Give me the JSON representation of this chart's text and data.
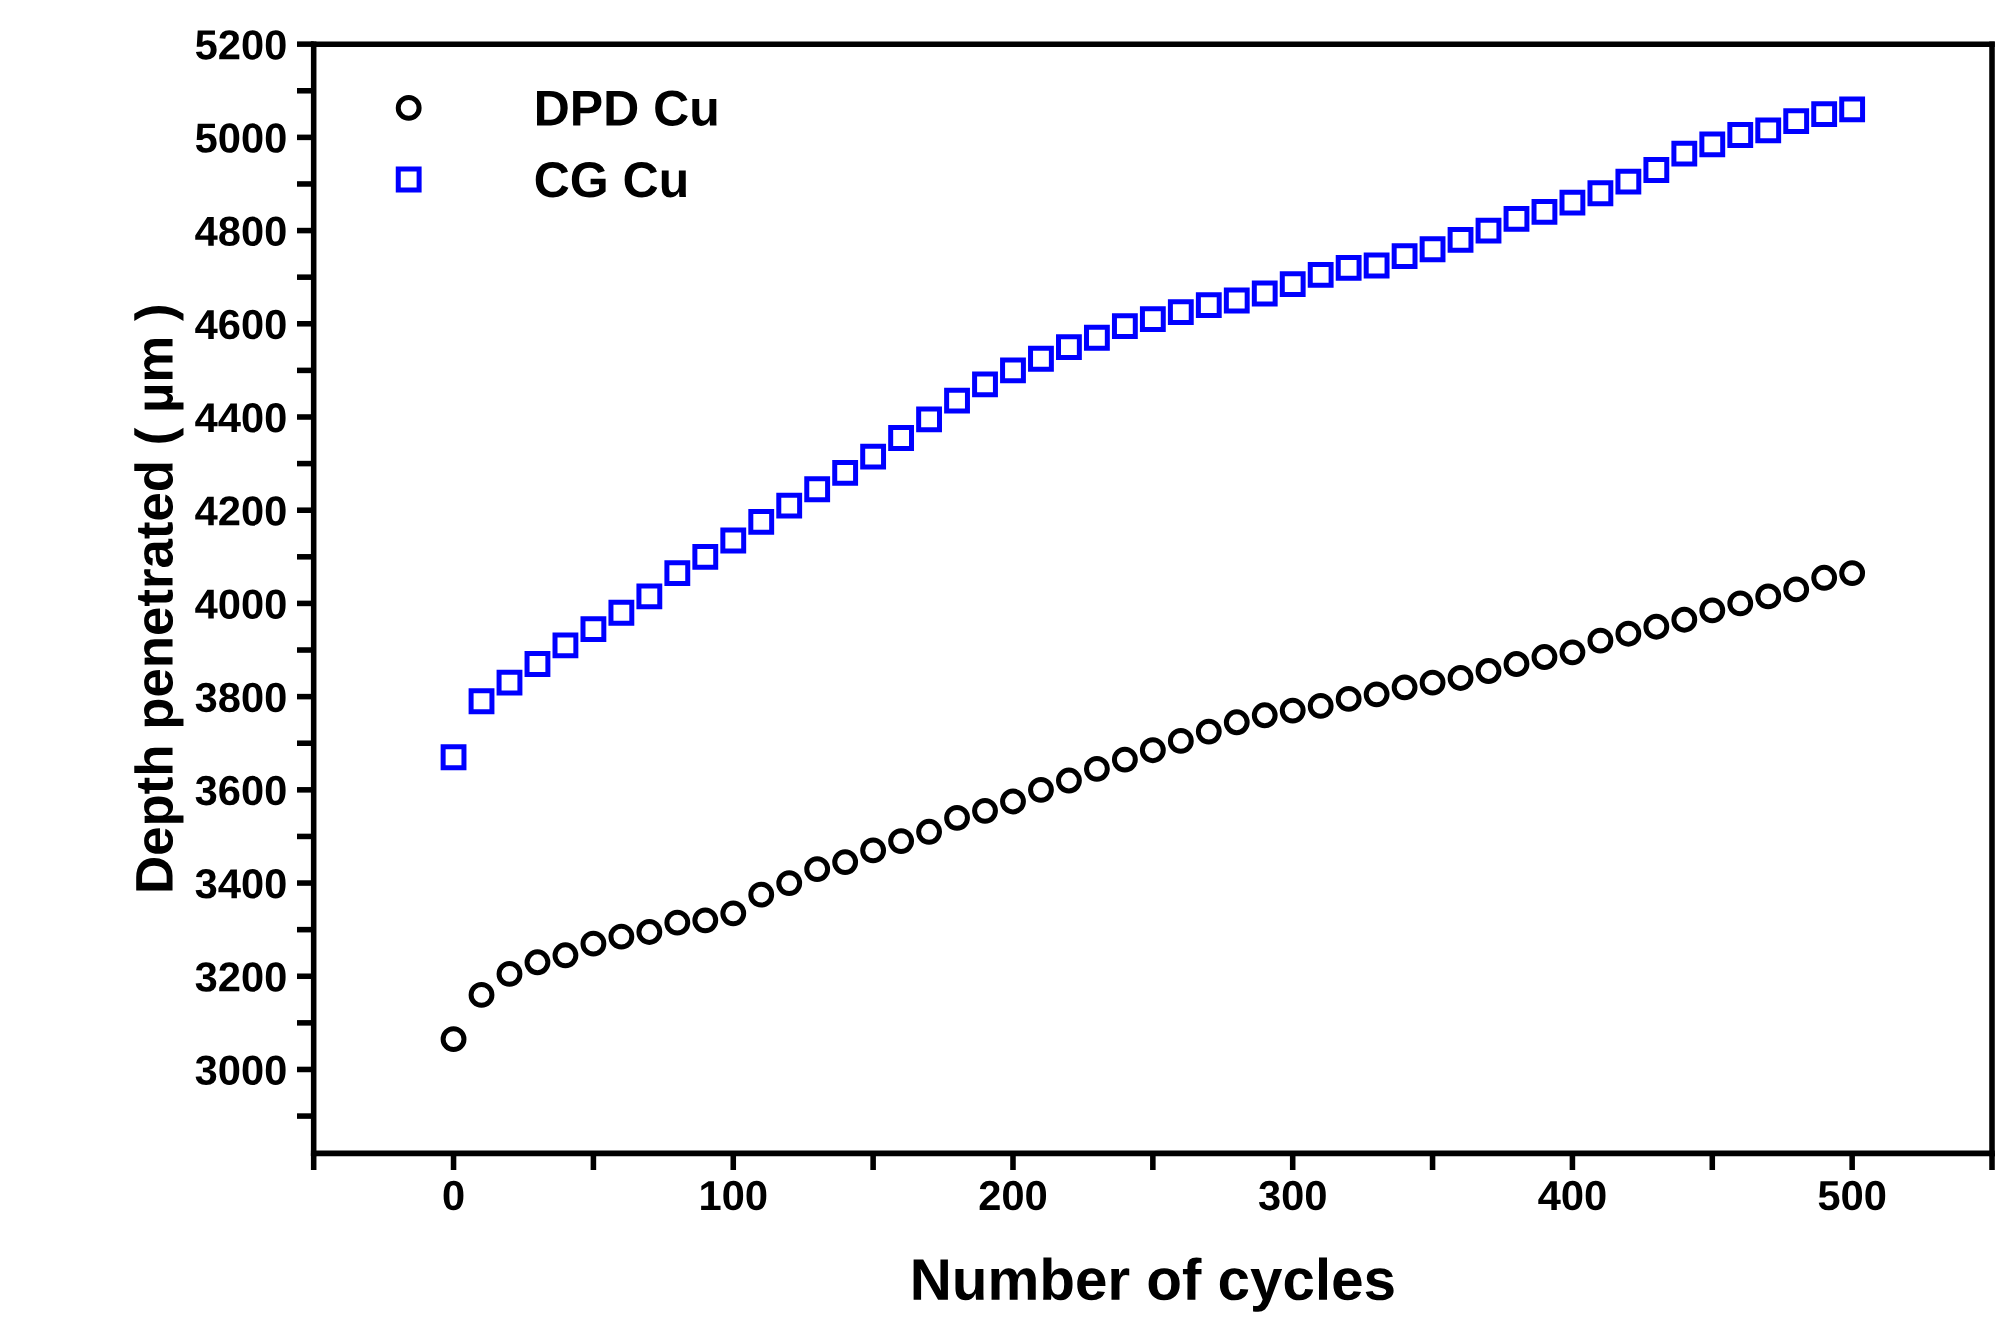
{
  "chart_data": {
    "type": "scatter",
    "xlabel": "Number of cycles",
    "ylabel": "Depth penetrated ( µm )",
    "xlim": [
      -50,
      550
    ],
    "ylim": [
      2820,
      5200
    ],
    "xticks": [
      {
        "value": -50,
        "label": null
      },
      0,
      {
        "value": 50,
        "label": null
      },
      100,
      {
        "value": 150,
        "label": null
      },
      200,
      {
        "value": 250,
        "label": null
      },
      300,
      {
        "value": 350,
        "label": null
      },
      400,
      {
        "value": 450,
        "label": null
      },
      500,
      {
        "value": 550,
        "label": null
      }
    ],
    "yticks": [
      {
        "value": 2900,
        "label": null
      },
      3000,
      {
        "value": 3100,
        "label": null
      },
      3200,
      {
        "value": 3300,
        "label": null
      },
      3400,
      {
        "value": 3500,
        "label": null
      },
      3600,
      {
        "value": 3700,
        "label": null
      },
      3800,
      {
        "value": 3900,
        "label": null
      },
      4000,
      {
        "value": 4100,
        "label": null
      },
      4200,
      {
        "value": 4300,
        "label": null
      },
      4400,
      {
        "value": 4500,
        "label": null
      },
      4600,
      {
        "value": 4700,
        "label": null
      },
      4800,
      {
        "value": 4900,
        "label": null
      },
      5000,
      {
        "value": 5100,
        "label": null
      },
      5200
    ],
    "x": [
      0,
      10,
      20,
      30,
      40,
      50,
      60,
      70,
      80,
      90,
      100,
      110,
      120,
      130,
      140,
      150,
      160,
      170,
      180,
      190,
      200,
      210,
      220,
      230,
      240,
      250,
      260,
      270,
      280,
      290,
      300,
      310,
      320,
      330,
      340,
      350,
      360,
      370,
      380,
      390,
      400,
      410,
      420,
      430,
      440,
      450,
      460,
      470,
      480,
      490,
      500
    ],
    "grid": false,
    "legend": "top left",
    "series": [
      {
        "name": "DPD Cu",
        "color": "#000000",
        "marker": "circle",
        "values": [
          3065,
          3160,
          3205,
          3230,
          3245,
          3270,
          3285,
          3295,
          3315,
          3320,
          3335,
          3375,
          3400,
          3430,
          3445,
          3470,
          3490,
          3510,
          3540,
          3555,
          3575,
          3600,
          3620,
          3645,
          3665,
          3685,
          3705,
          3725,
          3745,
          3760,
          3770,
          3780,
          3795,
          3805,
          3820,
          3830,
          3840,
          3855,
          3870,
          3885,
          3895,
          3920,
          3935,
          3950,
          3965,
          3985,
          4000,
          4015,
          4030,
          4055,
          4065
        ]
      },
      {
        "name": "CG Cu",
        "color": "#0000ff",
        "marker": "square",
        "values": [
          3670,
          3790,
          3830,
          3870,
          3910,
          3945,
          3980,
          4015,
          4065,
          4100,
          4135,
          4175,
          4210,
          4245,
          4280,
          4315,
          4355,
          4395,
          4435,
          4470,
          4500,
          4525,
          4550,
          4570,
          4595,
          4610,
          4625,
          4640,
          4650,
          4665,
          4685,
          4705,
          4720,
          4725,
          4745,
          4760,
          4780,
          4800,
          4825,
          4840,
          4860,
          4880,
          4905,
          4930,
          4965,
          4985,
          5005,
          5015,
          5035,
          5050,
          5060
        ]
      }
    ]
  }
}
